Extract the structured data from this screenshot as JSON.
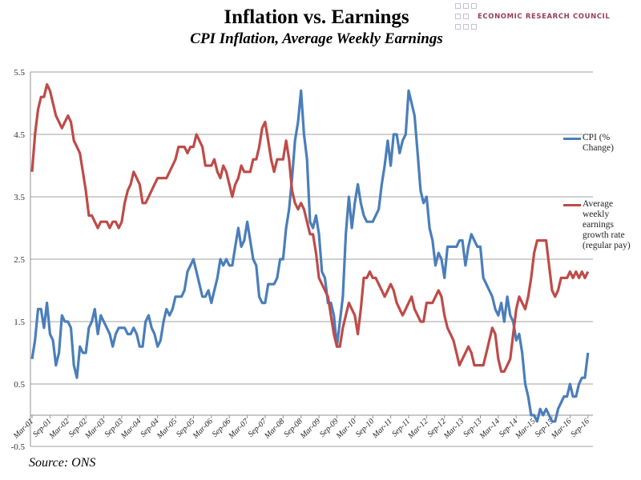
{
  "header": {
    "title": "Inflation vs. Earnings",
    "subtitle": "CPI Inflation, Average Weekly Earnings"
  },
  "logo": {
    "text": "ECONOMIC RESEARCH COUNCIL",
    "color": "#9b3b5e"
  },
  "footer": {
    "source": "Source: ONS"
  },
  "chart_data": {
    "type": "line",
    "title": "Inflation vs. Earnings",
    "subtitle": "CPI Inflation, Average Weekly Earnings",
    "ylim": [
      -0.5,
      5.5
    ],
    "y_ticks": [
      "5.5",
      "4.5",
      "3.5",
      "2.5",
      "1.5",
      "0.5",
      "-0.5"
    ],
    "x_start": "Mar-01",
    "x_end": "Sep-16",
    "x_frequency": "monthly",
    "x_tick_labels": [
      "Mar-01",
      "Sep-01",
      "Mar-02",
      "Sep-02",
      "Mar-03",
      "Sep-03",
      "Mar-04",
      "Sep-04",
      "Mar-05",
      "Sep-05",
      "Mar-06",
      "Sep-06",
      "Mar-07",
      "Sep-07",
      "Mar-08",
      "Sep-08",
      "Mar-09",
      "Sep-09",
      "Mar-10",
      "Sep-10",
      "Mar-11",
      "Sep-11",
      "Mar-12",
      "Sep-12",
      "Mar-13",
      "Sep-13",
      "Mar-14",
      "Sep-14",
      "Mar-15",
      "Sep-15",
      "Mar-16",
      "Sep-16"
    ],
    "grid": true,
    "legend_placement": "right",
    "series": [
      {
        "name": "CPI (% Change)",
        "legend_lines": [
          "CPI (%",
          "Change)"
        ],
        "color": "#4a7ebb",
        "values": [
          0.9,
          1.2,
          1.7,
          1.7,
          1.4,
          1.8,
          1.3,
          1.2,
          0.8,
          1.0,
          1.6,
          1.5,
          1.5,
          1.4,
          0.8,
          0.6,
          1.1,
          1.0,
          1.0,
          1.4,
          1.5,
          1.7,
          1.3,
          1.6,
          1.5,
          1.4,
          1.3,
          1.1,
          1.3,
          1.4,
          1.4,
          1.4,
          1.3,
          1.3,
          1.4,
          1.3,
          1.1,
          1.1,
          1.5,
          1.6,
          1.4,
          1.3,
          1.1,
          1.2,
          1.5,
          1.7,
          1.6,
          1.7,
          1.9,
          1.9,
          1.9,
          2.0,
          2.3,
          2.4,
          2.5,
          2.3,
          2.1,
          1.9,
          1.9,
          2.0,
          1.8,
          2.0,
          2.2,
          2.5,
          2.4,
          2.5,
          2.4,
          2.4,
          2.7,
          3.0,
          2.7,
          2.8,
          3.1,
          2.8,
          2.5,
          2.4,
          1.9,
          1.8,
          1.8,
          2.1,
          2.1,
          2.1,
          2.2,
          2.5,
          2.5,
          3.0,
          3.3,
          3.8,
          4.4,
          4.7,
          5.2,
          4.5,
          4.1,
          3.1,
          3.0,
          3.2,
          2.9,
          2.3,
          2.2,
          1.8,
          1.8,
          1.6,
          1.1,
          1.5,
          1.9,
          2.9,
          3.5,
          3.0,
          3.4,
          3.7,
          3.4,
          3.2,
          3.1,
          3.1,
          3.1,
          3.2,
          3.3,
          3.7,
          4.0,
          4.4,
          4.0,
          4.5,
          4.5,
          4.2,
          4.4,
          4.5,
          5.2,
          5.0,
          4.8,
          4.2,
          3.6,
          3.4,
          3.5,
          3.0,
          2.8,
          2.4,
          2.6,
          2.5,
          2.2,
          2.7,
          2.7,
          2.7,
          2.7,
          2.8,
          2.8,
          2.4,
          2.7,
          2.9,
          2.8,
          2.7,
          2.7,
          2.2,
          2.1,
          2.0,
          1.9,
          1.7,
          1.6,
          1.8,
          1.5,
          1.9,
          1.6,
          1.5,
          1.2,
          1.3,
          1.0,
          0.5,
          0.3,
          0.0,
          0.0,
          -0.1,
          0.1,
          0.0,
          0.1,
          0.0,
          -0.1,
          -0.1,
          0.1,
          0.2,
          0.3,
          0.3,
          0.5,
          0.3,
          0.3,
          0.5,
          0.6,
          0.6,
          1.0
        ]
      },
      {
        "name": "Average weekly earnings growth rate (regular pay)",
        "legend_lines": [
          "Average",
          "weekly",
          "earnings",
          "growth rate",
          "(regular pay)"
        ],
        "color": "#be4b48",
        "values": [
          3.9,
          4.5,
          4.9,
          5.1,
          5.1,
          5.3,
          5.2,
          5.0,
          4.8,
          4.7,
          4.6,
          4.7,
          4.8,
          4.7,
          4.4,
          4.3,
          4.2,
          3.9,
          3.6,
          3.2,
          3.2,
          3.1,
          3.0,
          3.1,
          3.1,
          3.1,
          3.0,
          3.1,
          3.1,
          3.0,
          3.1,
          3.4,
          3.6,
          3.7,
          3.9,
          3.8,
          3.7,
          3.4,
          3.4,
          3.5,
          3.6,
          3.7,
          3.8,
          3.8,
          3.8,
          3.8,
          3.9,
          4.0,
          4.1,
          4.3,
          4.3,
          4.3,
          4.2,
          4.3,
          4.3,
          4.5,
          4.4,
          4.3,
          4.0,
          4.0,
          4.0,
          4.1,
          3.9,
          3.8,
          4.0,
          3.9,
          3.7,
          3.5,
          3.7,
          3.8,
          4.0,
          3.9,
          3.9,
          3.9,
          4.1,
          4.1,
          4.3,
          4.6,
          4.7,
          4.4,
          4.1,
          3.9,
          4.1,
          4.1,
          4.1,
          4.4,
          4.1,
          3.6,
          3.4,
          3.3,
          3.4,
          3.3,
          3.1,
          2.9,
          2.9,
          2.6,
          2.2,
          2.1,
          2.0,
          1.9,
          1.6,
          1.3,
          1.1,
          1.1,
          1.4,
          1.6,
          1.8,
          1.7,
          1.6,
          1.3,
          1.7,
          2.2,
          2.2,
          2.3,
          2.2,
          2.2,
          2.1,
          2.0,
          1.9,
          2.0,
          2.1,
          2.0,
          1.8,
          1.7,
          1.6,
          1.7,
          1.8,
          1.9,
          1.7,
          1.6,
          1.5,
          1.5,
          1.8,
          1.8,
          1.8,
          1.9,
          2.0,
          1.9,
          1.6,
          1.4,
          1.3,
          1.2,
          1.0,
          0.8,
          0.9,
          1.0,
          1.1,
          1.0,
          0.8,
          0.8,
          0.8,
          0.8,
          1.0,
          1.2,
          1.4,
          1.3,
          0.9,
          0.7,
          0.7,
          0.8,
          0.9,
          1.3,
          1.7,
          1.9,
          1.8,
          1.7,
          1.9,
          2.2,
          2.6,
          2.8,
          2.8,
          2.8,
          2.8,
          2.4,
          2.0,
          1.9,
          2.0,
          2.2,
          2.2,
          2.2,
          2.3,
          2.2,
          2.3,
          2.2,
          2.3,
          2.2,
          2.3
        ]
      }
    ]
  }
}
